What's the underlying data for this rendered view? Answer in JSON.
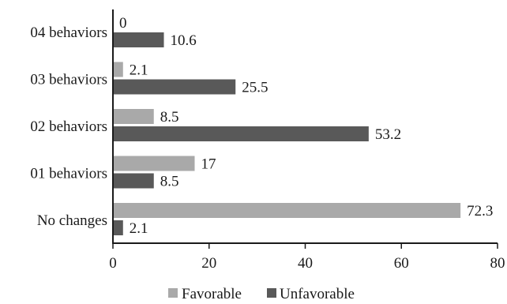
{
  "chart_data": {
    "type": "bar",
    "orientation": "horizontal",
    "categories": [
      "04 behaviors",
      "03  behaviors",
      "02 behaviors",
      "01  behaviors",
      "No changes"
    ],
    "series": [
      {
        "name": "Favorable",
        "values": [
          0,
          2.1,
          8.5,
          17,
          72.3
        ],
        "color": "#a9a9a9"
      },
      {
        "name": "Unfavorable",
        "values": [
          10.6,
          25.5,
          53.2,
          8.5,
          2.1
        ],
        "color": "#595959"
      }
    ],
    "xticks": [
      "0",
      "20",
      "40",
      "60",
      "80"
    ],
    "xlim": [
      0,
      80
    ],
    "grid": false,
    "legend_position": "bottom"
  }
}
